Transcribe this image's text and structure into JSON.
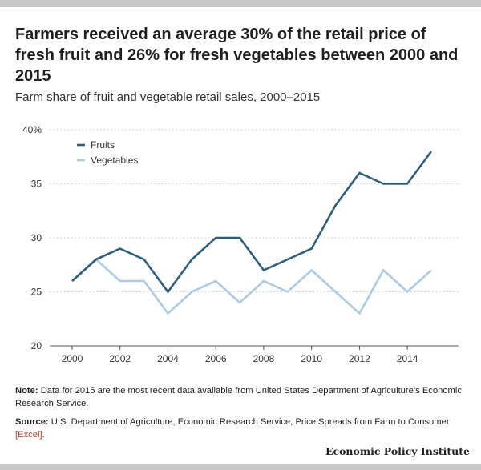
{
  "header": {
    "title": "Farmers received an average 30% of the retail price of fresh fruit and 26% for fresh vegetables between 2000 and 2015",
    "subtitle": "Farm share of fruit and vegetable retail sales, 2000–2015"
  },
  "chart_data": {
    "type": "line",
    "x": [
      2000,
      2001,
      2002,
      2003,
      2004,
      2005,
      2006,
      2007,
      2008,
      2009,
      2010,
      2011,
      2012,
      2013,
      2014,
      2015
    ],
    "series": [
      {
        "name": "Fruits",
        "color": "#2b5f7e",
        "values": [
          26,
          28,
          29,
          28,
          25,
          28,
          30,
          30,
          27,
          28,
          29,
          33,
          36,
          35,
          35,
          38
        ]
      },
      {
        "name": "Vegetables",
        "color": "#a9cbe6",
        "values": [
          26,
          28,
          26,
          26,
          23,
          25,
          26,
          24,
          26,
          25,
          27,
          25,
          23,
          27,
          25,
          27
        ]
      }
    ],
    "xticks": [
      "2000",
      "2002",
      "2004",
      "2006",
      "2008",
      "2010",
      "2012",
      "2014"
    ],
    "yticks": [
      "20",
      "25",
      "30",
      "35",
      "40%"
    ],
    "ylim": [
      20,
      40
    ],
    "xlim": [
      2000,
      2015
    ],
    "grid": "horizontal-dotted",
    "legend_position": "top-left"
  },
  "notes": {
    "note_label": "Note:",
    "note_text": "Data for 2015 are the most recent data available from United States Department of Agriculture’s Economic Research Service.",
    "source_label": "Source:",
    "source_text": "U.S. Department of Agriculture, Economic Research Service, Price Spreads from Farm to Consumer ",
    "source_link": "[Excel]",
    "source_end": "."
  },
  "brand": "Economic Policy Institute"
}
